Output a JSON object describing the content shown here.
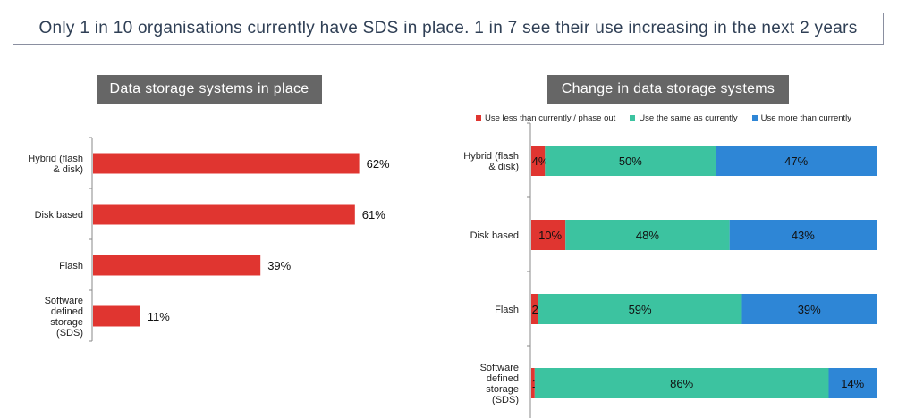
{
  "headline": "Only 1 in 10 organisations currently have SDS in place.  1 in 7 see their use increasing in the next 2 years",
  "colors": {
    "red": "#e03530",
    "green": "#3cc3a0",
    "blue": "#2e86d6",
    "title_bg": "#666666"
  },
  "chart_data": [
    {
      "type": "bar",
      "orientation": "horizontal",
      "title": "Data storage systems in place",
      "categories": [
        "Hybrid (flash & disk)",
        "Disk based",
        "Flash",
        "Software defined storage (SDS)"
      ],
      "category_lines": [
        [
          "Hybrid (flash",
          "& disk)"
        ],
        [
          "Disk based"
        ],
        [
          "Flash"
        ],
        [
          "Software",
          "defined",
          "storage",
          "(SDS)"
        ]
      ],
      "values": [
        62,
        61,
        39,
        11
      ],
      "value_labels": [
        "62%",
        "61%",
        "39%",
        "11%"
      ],
      "xlim": [
        0,
        100
      ],
      "grid": false,
      "color": "#e03530"
    },
    {
      "type": "bar",
      "orientation": "horizontal",
      "stacked": true,
      "title": "Change in data storage systems",
      "categories": [
        "Hybrid (flash & disk)",
        "Disk based",
        "Flash",
        "Software defined storage (SDS)"
      ],
      "category_lines": [
        [
          "Hybrid (flash",
          "& disk)"
        ],
        [
          "Disk based"
        ],
        [
          "Flash"
        ],
        [
          "Software",
          "defined",
          "storage",
          "(SDS)"
        ]
      ],
      "legend_position": "top",
      "grid": false,
      "xlim": [
        0,
        100
      ],
      "series": [
        {
          "name": "Use less than currently / phase out",
          "color": "#e03530",
          "values": [
            4,
            10,
            2,
            1
          ],
          "labels": [
            "4%",
            "10%",
            "2%",
            "1%"
          ]
        },
        {
          "name": "Use the same as currently",
          "color": "#3cc3a0",
          "values": [
            50,
            48,
            59,
            86
          ],
          "labels": [
            "50%",
            "48%",
            "59%",
            "86%"
          ]
        },
        {
          "name": "Use more than currently",
          "color": "#2e86d6",
          "values": [
            47,
            43,
            39,
            14
          ],
          "labels": [
            "47%",
            "43%",
            "39%",
            "14%"
          ]
        }
      ]
    }
  ]
}
